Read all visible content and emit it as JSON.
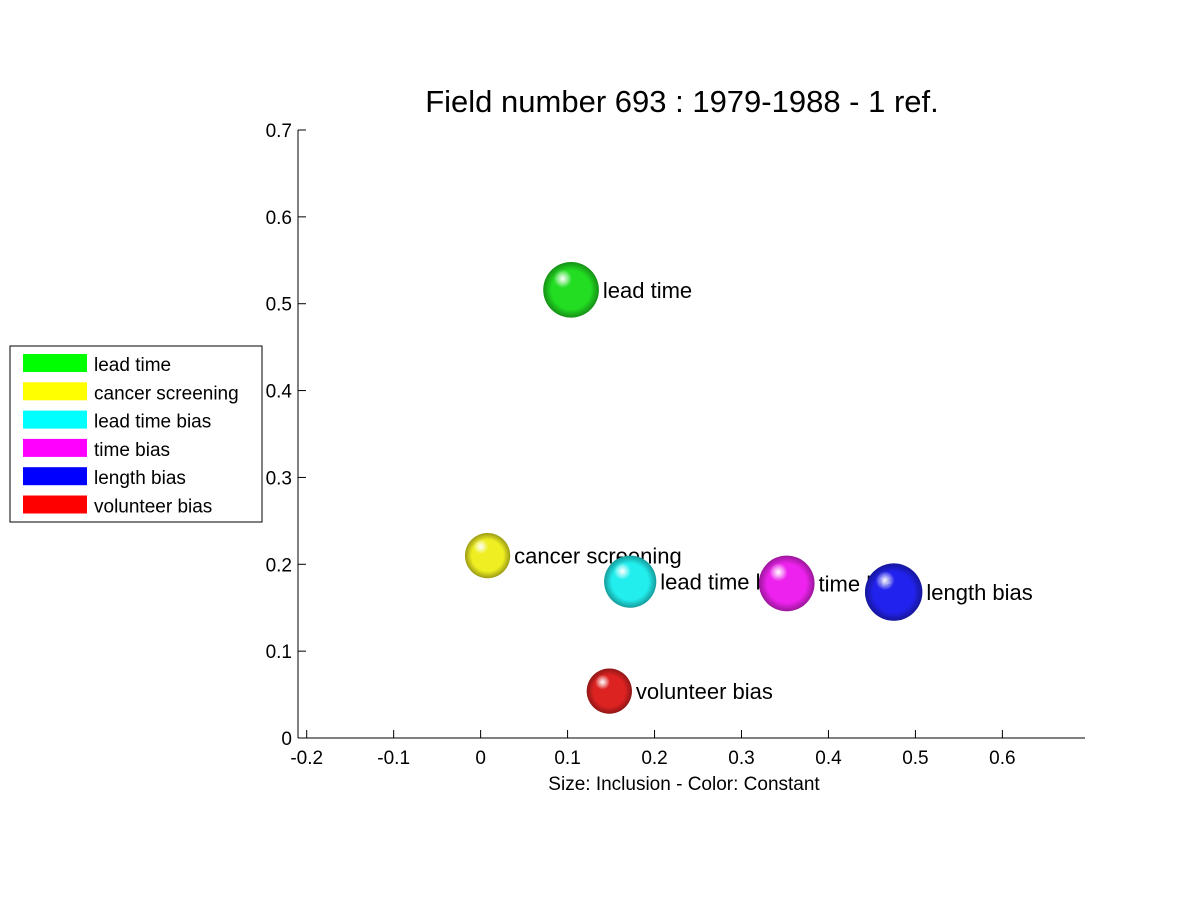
{
  "chart_data": {
    "type": "scatter",
    "title": "Field number 693 : 1979-1988  - 1 ref.",
    "xlabel": "Size: Inclusion - Color: Constant",
    "ylabel": "",
    "xlim": [
      -0.21,
      0.695
    ],
    "ylim": [
      0,
      0.7
    ],
    "x_ticks": [
      "-0.2",
      "-0.1",
      "0",
      "0.1",
      "0.2",
      "0.3",
      "0.4",
      "0.5",
      "0.6"
    ],
    "y_ticks": [
      "0",
      "0.1",
      "0.2",
      "0.3",
      "0.4",
      "0.5",
      "0.6",
      "0.7"
    ],
    "grid": false,
    "legend_position": "left",
    "points": [
      {
        "label": "lead time",
        "x": 0.104,
        "y": 0.516,
        "size": 0.032,
        "color": "#22dd22"
      },
      {
        "label": "cancer screening",
        "x": 0.008,
        "y": 0.21,
        "size": 0.026,
        "color": "#eeee22"
      },
      {
        "label": "lead time bias",
        "x": 0.172,
        "y": 0.18,
        "size": 0.03,
        "color": "#22eeee"
      },
      {
        "label": "time bias",
        "x": 0.352,
        "y": 0.178,
        "size": 0.032,
        "color": "#ee22ee"
      },
      {
        "label": "length bias",
        "x": 0.475,
        "y": 0.168,
        "size": 0.033,
        "color": "#2222ee"
      },
      {
        "label": "volunteer bias",
        "x": 0.148,
        "y": 0.054,
        "size": 0.026,
        "color": "#dd2222"
      }
    ],
    "legend": [
      {
        "label": "lead time",
        "color": "#00ff00"
      },
      {
        "label": "cancer screening",
        "color": "#ffff00"
      },
      {
        "label": "lead time bias",
        "color": "#00ffff"
      },
      {
        "label": "time bias",
        "color": "#ff00ff"
      },
      {
        "label": "length bias",
        "color": "#0000ff"
      },
      {
        "label": "volunteer bias",
        "color": "#ff0000"
      }
    ]
  }
}
